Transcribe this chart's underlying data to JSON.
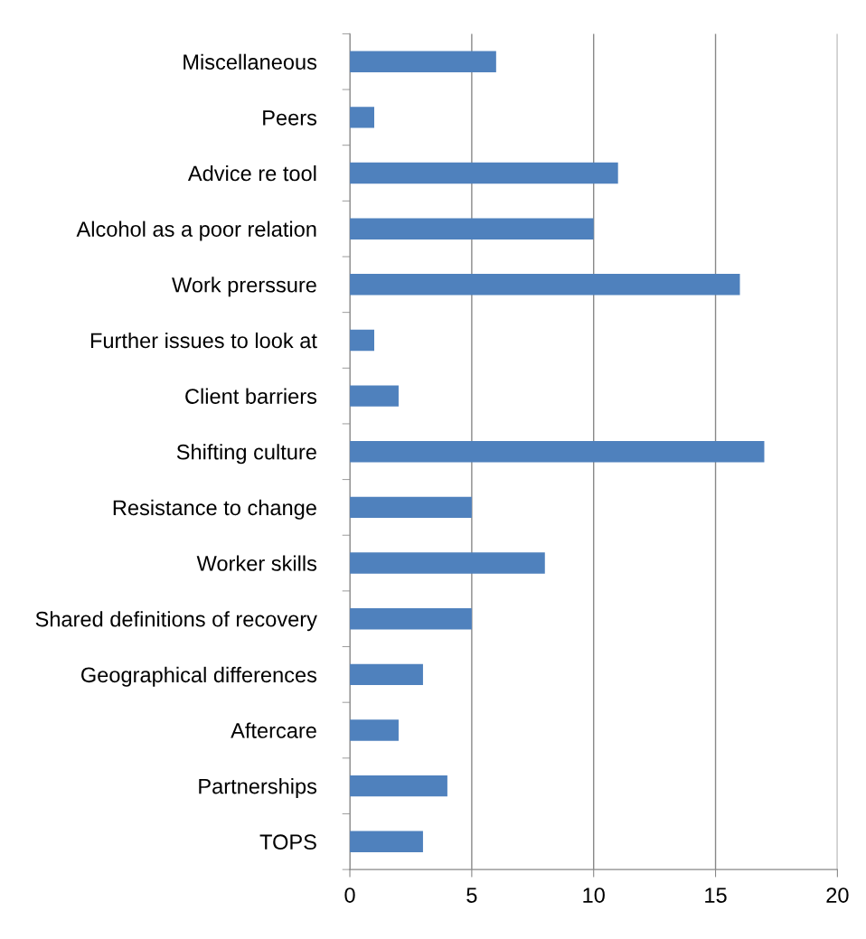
{
  "chart_data": {
    "type": "bar",
    "orientation": "horizontal",
    "categories": [
      "Miscellaneous",
      "Peers",
      "Advice re tool",
      "Alcohol as a poor relation",
      "Work prerssure",
      "Further issues to look at",
      "Client barriers",
      "Shifting culture",
      "Resistance to change",
      "Worker skills",
      "Shared definitions of recovery",
      "Geographical differences",
      "Aftercare",
      "Partnerships",
      "TOPS"
    ],
    "values": [
      6,
      1,
      11,
      10,
      16,
      1,
      2,
      17,
      5,
      8,
      5,
      3,
      2,
      4,
      3
    ],
    "color": "#4f81bd",
    "xlim": [
      0,
      20
    ],
    "xticks": [
      0,
      5,
      10,
      15,
      20
    ],
    "grid": "x",
    "legend": false
  }
}
